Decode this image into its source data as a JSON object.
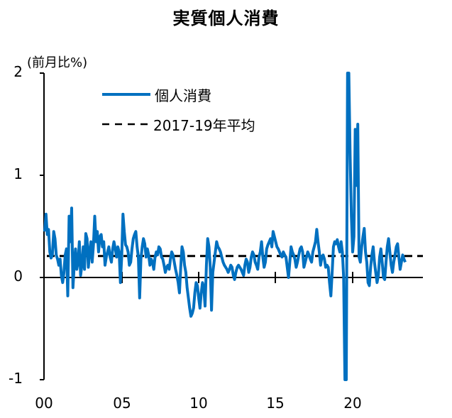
{
  "title": "実質個人消費",
  "y_unit": "(前月比%)",
  "legend": {
    "series_label": "個人消費",
    "average_label": "2017-19年平均"
  },
  "y_ticks": [
    "2",
    "1",
    "0",
    "-1"
  ],
  "x_ticks": [
    "00",
    "05",
    "10",
    "15",
    "20"
  ],
  "colors": {
    "series": "#0070C0",
    "average": "#000000",
    "axis": "#000000"
  },
  "chart_data": {
    "type": "line",
    "title": "実質個人消費",
    "xlabel": "",
    "ylabel": "(前月比%)",
    "ylim": [
      -1,
      2
    ],
    "xlim": [
      2000,
      2024.6
    ],
    "grid": false,
    "legend_position": "upper-left-inside",
    "x_tick_labels": [
      "00",
      "05",
      "10",
      "15",
      "20"
    ],
    "y_tick_labels": [
      "-1",
      "0",
      "1",
      "2"
    ],
    "series": [
      {
        "name": "個人消費",
        "style": "solid",
        "note": "monthly month-over-month % change, approximate values read from chart; 2020 values clipped at axis limits",
        "start": "2000-01",
        "values": [
          0.45,
          0.62,
          0.42,
          0.47,
          0.25,
          0.19,
          0.22,
          0.45,
          0.38,
          0.22,
          0.18,
          0.12,
          0.18,
          0.02,
          -0.05,
          0.05,
          0.22,
          0.28,
          -0.18,
          0.6,
          0.35,
          0.68,
          -0.1,
          0.12,
          0.28,
          0.08,
          0.15,
          0.35,
          0.02,
          0.12,
          0.3,
          0.08,
          0.43,
          0.38,
          0.1,
          0.25,
          0.35,
          0.15,
          0.32,
          0.6,
          0.35,
          0.45,
          0.25,
          0.4,
          0.42,
          0.3,
          0.35,
          0.12,
          0.2,
          0.25,
          0.3,
          0.2,
          0.15,
          0.28,
          0.35,
          0.28,
          0.2,
          0.3,
          0.25,
          -0.05,
          0.2,
          0.62,
          0.45,
          0.32,
          0.3,
          0.25,
          0.12,
          0.15,
          0.28,
          0.38,
          0.42,
          0.45,
          0.3,
          0.2,
          -0.2,
          0.18,
          0.3,
          0.38,
          0.33,
          0.2,
          0.28,
          0.22,
          0.12,
          0.18,
          0.15,
          0.08,
          0.2,
          0.25,
          0.22,
          0.3,
          0.28,
          0.2,
          0.18,
          0.12,
          0.05,
          0.1,
          0.12,
          0.08,
          0.18,
          0.25,
          0.22,
          0.15,
          0.08,
          0.02,
          -0.05,
          -0.15,
          0.1,
          0.3,
          0.25,
          0.12,
          0.05,
          -0.1,
          -0.2,
          -0.3,
          -0.38,
          -0.35,
          -0.3,
          -0.15,
          -0.05,
          -0.08,
          -0.2,
          -0.3,
          -0.15,
          -0.05,
          -0.1,
          -0.28,
          0.12,
          0.38,
          0.3,
          0.1,
          -0.32,
          0.05,
          0.15,
          0.25,
          0.35,
          0.3,
          0.28,
          0.25,
          0.2,
          0.15,
          0.12,
          0.1,
          0.08,
          0.05,
          0.08,
          0.12,
          0.1,
          0.02,
          -0.02,
          0.05,
          0.1,
          0.12,
          0.1,
          0.08,
          0.05,
          0.02,
          0.12,
          0.18,
          0.15,
          0.05,
          0.1,
          0.2,
          0.25,
          0.22,
          0.15,
          0.12,
          0.08,
          0.2,
          0.25,
          0.35,
          0.2,
          0.1,
          0.15,
          0.28,
          0.32,
          0.35,
          0.38,
          0.3,
          0.45,
          0.4,
          0.35,
          0.3,
          0.28,
          0.25,
          0.22,
          0.2,
          0.25,
          0.22,
          0.2,
          0.1,
          0.0,
          0.15,
          0.3,
          0.25,
          0.22,
          0.18,
          0.1,
          0.15,
          0.22,
          0.28,
          0.3,
          0.25,
          0.1,
          0.15,
          0.2,
          0.25,
          0.22,
          0.18,
          0.15,
          0.25,
          0.3,
          0.35,
          0.47,
          0.35,
          0.25,
          0.12,
          0.2,
          0.22,
          0.18,
          0.1,
          0.12,
          0.1,
          -0.05,
          -0.18,
          0.05,
          0.3,
          0.35,
          0.33,
          0.37,
          0.3,
          0.25,
          0.35,
          0.25,
          0.0,
          -1.0,
          -1.0,
          2.0,
          2.0,
          1.2,
          0.6,
          0.25,
          0.4,
          1.45,
          0.9,
          1.5,
          0.2,
          0.15,
          0.3,
          0.4,
          0.48,
          0.25,
          0.15,
          -0.05,
          -0.08,
          0.1,
          0.22,
          0.3,
          0.15,
          0.05,
          -0.05,
          0.02,
          0.2,
          0.28,
          0.15,
          0.0,
          -0.02,
          0.15,
          0.3,
          0.38,
          0.25,
          0.12,
          0.05,
          0.15,
          0.22,
          0.3,
          0.33,
          0.2,
          0.08,
          0.15,
          0.22,
          0.18,
          0.15
        ]
      },
      {
        "name": "2017-19年平均",
        "style": "dashed",
        "x_range": [
          2000,
          2024.6
        ],
        "values": [
          0.21
        ]
      }
    ]
  }
}
